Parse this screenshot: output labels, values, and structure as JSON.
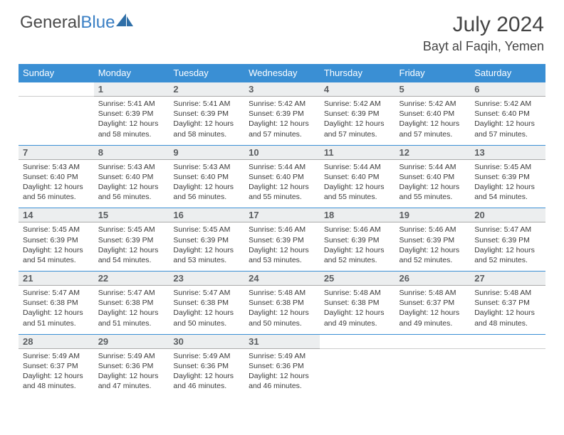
{
  "brand": {
    "name_gray": "General",
    "name_blue": "Blue"
  },
  "title": "July 2024",
  "location": "Bayt al Faqih, Yemen",
  "colors": {
    "header_bg": "#3a8fd4",
    "header_text": "#ffffff",
    "daynum_bg": "#eceeef",
    "daynum_border_top": "#3a8fd4",
    "daynum_text": "#5a5d60",
    "body_text": "#3b3b3b",
    "title_text": "#444444"
  },
  "weekdays": [
    "Sunday",
    "Monday",
    "Tuesday",
    "Wednesday",
    "Thursday",
    "Friday",
    "Saturday"
  ],
  "weeks": [
    {
      "nums": [
        "",
        "1",
        "2",
        "3",
        "4",
        "5",
        "6"
      ],
      "cells": [
        null,
        {
          "sr": "Sunrise: 5:41 AM",
          "ss": "Sunset: 6:39 PM",
          "dl": "Daylight: 12 hours and 58 minutes."
        },
        {
          "sr": "Sunrise: 5:41 AM",
          "ss": "Sunset: 6:39 PM",
          "dl": "Daylight: 12 hours and 58 minutes."
        },
        {
          "sr": "Sunrise: 5:42 AM",
          "ss": "Sunset: 6:39 PM",
          "dl": "Daylight: 12 hours and 57 minutes."
        },
        {
          "sr": "Sunrise: 5:42 AM",
          "ss": "Sunset: 6:39 PM",
          "dl": "Daylight: 12 hours and 57 minutes."
        },
        {
          "sr": "Sunrise: 5:42 AM",
          "ss": "Sunset: 6:40 PM",
          "dl": "Daylight: 12 hours and 57 minutes."
        },
        {
          "sr": "Sunrise: 5:42 AM",
          "ss": "Sunset: 6:40 PM",
          "dl": "Daylight: 12 hours and 57 minutes."
        }
      ]
    },
    {
      "nums": [
        "7",
        "8",
        "9",
        "10",
        "11",
        "12",
        "13"
      ],
      "cells": [
        {
          "sr": "Sunrise: 5:43 AM",
          "ss": "Sunset: 6:40 PM",
          "dl": "Daylight: 12 hours and 56 minutes."
        },
        {
          "sr": "Sunrise: 5:43 AM",
          "ss": "Sunset: 6:40 PM",
          "dl": "Daylight: 12 hours and 56 minutes."
        },
        {
          "sr": "Sunrise: 5:43 AM",
          "ss": "Sunset: 6:40 PM",
          "dl": "Daylight: 12 hours and 56 minutes."
        },
        {
          "sr": "Sunrise: 5:44 AM",
          "ss": "Sunset: 6:40 PM",
          "dl": "Daylight: 12 hours and 55 minutes."
        },
        {
          "sr": "Sunrise: 5:44 AM",
          "ss": "Sunset: 6:40 PM",
          "dl": "Daylight: 12 hours and 55 minutes."
        },
        {
          "sr": "Sunrise: 5:44 AM",
          "ss": "Sunset: 6:40 PM",
          "dl": "Daylight: 12 hours and 55 minutes."
        },
        {
          "sr": "Sunrise: 5:45 AM",
          "ss": "Sunset: 6:39 PM",
          "dl": "Daylight: 12 hours and 54 minutes."
        }
      ]
    },
    {
      "nums": [
        "14",
        "15",
        "16",
        "17",
        "18",
        "19",
        "20"
      ],
      "cells": [
        {
          "sr": "Sunrise: 5:45 AM",
          "ss": "Sunset: 6:39 PM",
          "dl": "Daylight: 12 hours and 54 minutes."
        },
        {
          "sr": "Sunrise: 5:45 AM",
          "ss": "Sunset: 6:39 PM",
          "dl": "Daylight: 12 hours and 54 minutes."
        },
        {
          "sr": "Sunrise: 5:45 AM",
          "ss": "Sunset: 6:39 PM",
          "dl": "Daylight: 12 hours and 53 minutes."
        },
        {
          "sr": "Sunrise: 5:46 AM",
          "ss": "Sunset: 6:39 PM",
          "dl": "Daylight: 12 hours and 53 minutes."
        },
        {
          "sr": "Sunrise: 5:46 AM",
          "ss": "Sunset: 6:39 PM",
          "dl": "Daylight: 12 hours and 52 minutes."
        },
        {
          "sr": "Sunrise: 5:46 AM",
          "ss": "Sunset: 6:39 PM",
          "dl": "Daylight: 12 hours and 52 minutes."
        },
        {
          "sr": "Sunrise: 5:47 AM",
          "ss": "Sunset: 6:39 PM",
          "dl": "Daylight: 12 hours and 52 minutes."
        }
      ]
    },
    {
      "nums": [
        "21",
        "22",
        "23",
        "24",
        "25",
        "26",
        "27"
      ],
      "cells": [
        {
          "sr": "Sunrise: 5:47 AM",
          "ss": "Sunset: 6:38 PM",
          "dl": "Daylight: 12 hours and 51 minutes."
        },
        {
          "sr": "Sunrise: 5:47 AM",
          "ss": "Sunset: 6:38 PM",
          "dl": "Daylight: 12 hours and 51 minutes."
        },
        {
          "sr": "Sunrise: 5:47 AM",
          "ss": "Sunset: 6:38 PM",
          "dl": "Daylight: 12 hours and 50 minutes."
        },
        {
          "sr": "Sunrise: 5:48 AM",
          "ss": "Sunset: 6:38 PM",
          "dl": "Daylight: 12 hours and 50 minutes."
        },
        {
          "sr": "Sunrise: 5:48 AM",
          "ss": "Sunset: 6:38 PM",
          "dl": "Daylight: 12 hours and 49 minutes."
        },
        {
          "sr": "Sunrise: 5:48 AM",
          "ss": "Sunset: 6:37 PM",
          "dl": "Daylight: 12 hours and 49 minutes."
        },
        {
          "sr": "Sunrise: 5:48 AM",
          "ss": "Sunset: 6:37 PM",
          "dl": "Daylight: 12 hours and 48 minutes."
        }
      ]
    },
    {
      "nums": [
        "28",
        "29",
        "30",
        "31",
        "",
        "",
        ""
      ],
      "cells": [
        {
          "sr": "Sunrise: 5:49 AM",
          "ss": "Sunset: 6:37 PM",
          "dl": "Daylight: 12 hours and 48 minutes."
        },
        {
          "sr": "Sunrise: 5:49 AM",
          "ss": "Sunset: 6:36 PM",
          "dl": "Daylight: 12 hours and 47 minutes."
        },
        {
          "sr": "Sunrise: 5:49 AM",
          "ss": "Sunset: 6:36 PM",
          "dl": "Daylight: 12 hours and 46 minutes."
        },
        {
          "sr": "Sunrise: 5:49 AM",
          "ss": "Sunset: 6:36 PM",
          "dl": "Daylight: 12 hours and 46 minutes."
        },
        null,
        null,
        null
      ]
    }
  ]
}
